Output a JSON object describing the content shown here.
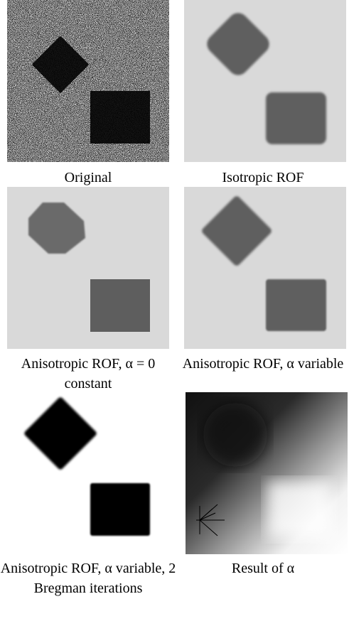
{
  "panels": [
    {
      "caption": "Original"
    },
    {
      "caption": "Isotropic ROF"
    },
    {
      "caption": "Anisotropic ROF, α = 0 constant"
    },
    {
      "caption": "Anisotropic ROF, α variable"
    },
    {
      "caption": "Anisotropic ROF, α variable, 2 Bregman iterations"
    },
    {
      "caption": "Result of α"
    }
  ]
}
